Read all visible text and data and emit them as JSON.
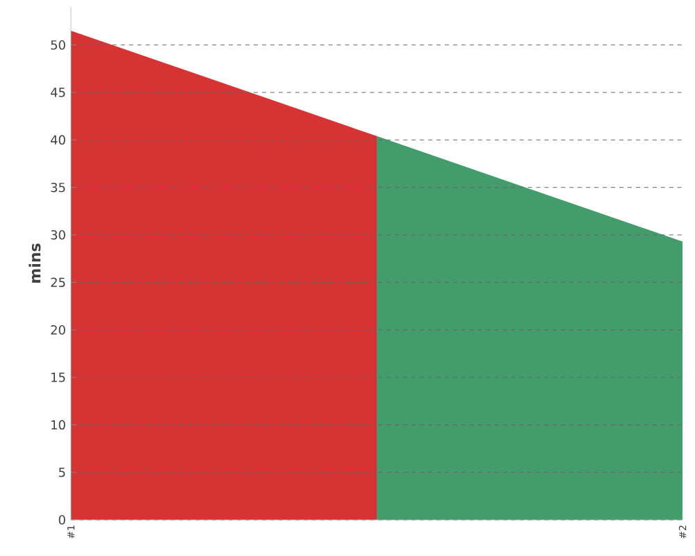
{
  "chart_data": {
    "type": "area",
    "ylabel": "mins",
    "categories": [
      "#1",
      null,
      "#2"
    ],
    "ylim": [
      0,
      54
    ],
    "yticks": [
      0,
      5,
      10,
      15,
      20,
      25,
      30,
      35,
      40,
      45,
      50
    ],
    "grid": "y",
    "series": [
      {
        "color": "#d63434",
        "values": [
          51.5,
          40.4,
          null
        ]
      },
      {
        "color": "#449c6c",
        "values": [
          null,
          40.4,
          29.3
        ]
      }
    ]
  }
}
